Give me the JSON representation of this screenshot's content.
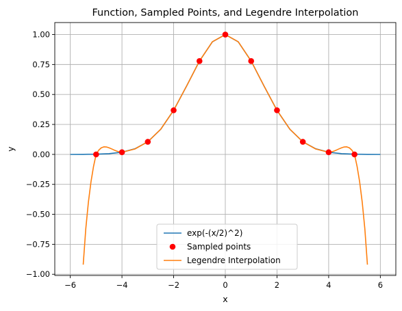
{
  "chart_data": {
    "type": "line",
    "title": "Function, Sampled Points, and Legendre Interpolation",
    "xlabel": "x",
    "ylabel": "y",
    "xlim": [
      -6.6,
      6.6
    ],
    "ylim": [
      -1.01,
      1.1
    ],
    "grid": true,
    "legend_position": "lower center",
    "x_ticks": [
      {
        "value": -6,
        "label": "−6"
      },
      {
        "value": -4,
        "label": "−4"
      },
      {
        "value": -2,
        "label": "−2"
      },
      {
        "value": 0,
        "label": "0"
      },
      {
        "value": 2,
        "label": "2"
      },
      {
        "value": 4,
        "label": "4"
      },
      {
        "value": 6,
        "label": "6"
      }
    ],
    "y_ticks": [
      {
        "value": 1.0,
        "label": "1.00"
      },
      {
        "value": 0.75,
        "label": "0.75"
      },
      {
        "value": 0.5,
        "label": "0.50"
      },
      {
        "value": 0.25,
        "label": "0.25"
      },
      {
        "value": 0.0,
        "label": "0.00"
      },
      {
        "value": -0.25,
        "label": "−0.25"
      },
      {
        "value": -0.5,
        "label": "−0.50"
      },
      {
        "value": -0.75,
        "label": "−0.75"
      },
      {
        "value": -1.0,
        "label": "−1.00"
      }
    ],
    "series": [
      {
        "name": "exp(-(x/2)^2)",
        "kind": "line",
        "color": "#1f77b4",
        "x": [
          -6,
          -5.5,
          -5,
          -4.5,
          -4,
          -3.5,
          -3,
          -2.5,
          -2,
          -1.5,
          -1,
          -0.5,
          0,
          0.5,
          1,
          1.5,
          2,
          2.5,
          3,
          3.5,
          4,
          4.5,
          5,
          5.5,
          6
        ],
        "y": [
          0.0001,
          0.0005,
          0.0019,
          0.0063,
          0.0183,
          0.0468,
          0.1054,
          0.2096,
          0.3679,
          0.5698,
          0.7788,
          0.9394,
          1.0,
          0.9394,
          0.7788,
          0.5698,
          0.3679,
          0.2096,
          0.1054,
          0.0468,
          0.0183,
          0.0063,
          0.0019,
          0.0005,
          0.0001
        ]
      },
      {
        "name": "Sampled points",
        "kind": "scatter",
        "color": "#ff0000",
        "x": [
          -5,
          -4,
          -3,
          -2,
          -1,
          0,
          1,
          2,
          3,
          4,
          5
        ],
        "y": [
          0.0,
          0.018,
          0.105,
          0.368,
          0.779,
          1.0,
          0.779,
          0.368,
          0.105,
          0.018,
          0.0
        ]
      },
      {
        "name": "Legendre Interpolation",
        "kind": "line",
        "color": "#ff7f0e",
        "x": [
          -5.5,
          -5.4,
          -5.3,
          -5.2,
          -5.1,
          -5.0,
          -4.9,
          -4.8,
          -4.7,
          -4.6,
          -4.5,
          -4.4,
          -4.3,
          -4.2,
          -4.1,
          -4.0,
          -3.5,
          -3.0,
          -2.5,
          -2.0,
          -1.5,
          -1.0,
          -0.5,
          0,
          0.5,
          1.0,
          1.5,
          2.0,
          2.5,
          3.0,
          3.5,
          4.0,
          4.1,
          4.2,
          4.3,
          4.4,
          4.5,
          4.6,
          4.7,
          4.8,
          4.9,
          5.0,
          5.1,
          5.2,
          5.3,
          5.4,
          5.5
        ],
        "y": [
          -0.92,
          -0.62,
          -0.4,
          -0.23,
          -0.1,
          0.0,
          0.035,
          0.055,
          0.063,
          0.062,
          0.055,
          0.046,
          0.036,
          0.027,
          0.021,
          0.018,
          0.045,
          0.105,
          0.21,
          0.368,
          0.57,
          0.779,
          0.94,
          1.0,
          0.94,
          0.779,
          0.57,
          0.368,
          0.21,
          0.105,
          0.045,
          0.018,
          0.021,
          0.027,
          0.036,
          0.046,
          0.055,
          0.062,
          0.063,
          0.055,
          0.035,
          0.0,
          -0.1,
          -0.23,
          -0.4,
          -0.62,
          -0.92
        ]
      }
    ]
  }
}
